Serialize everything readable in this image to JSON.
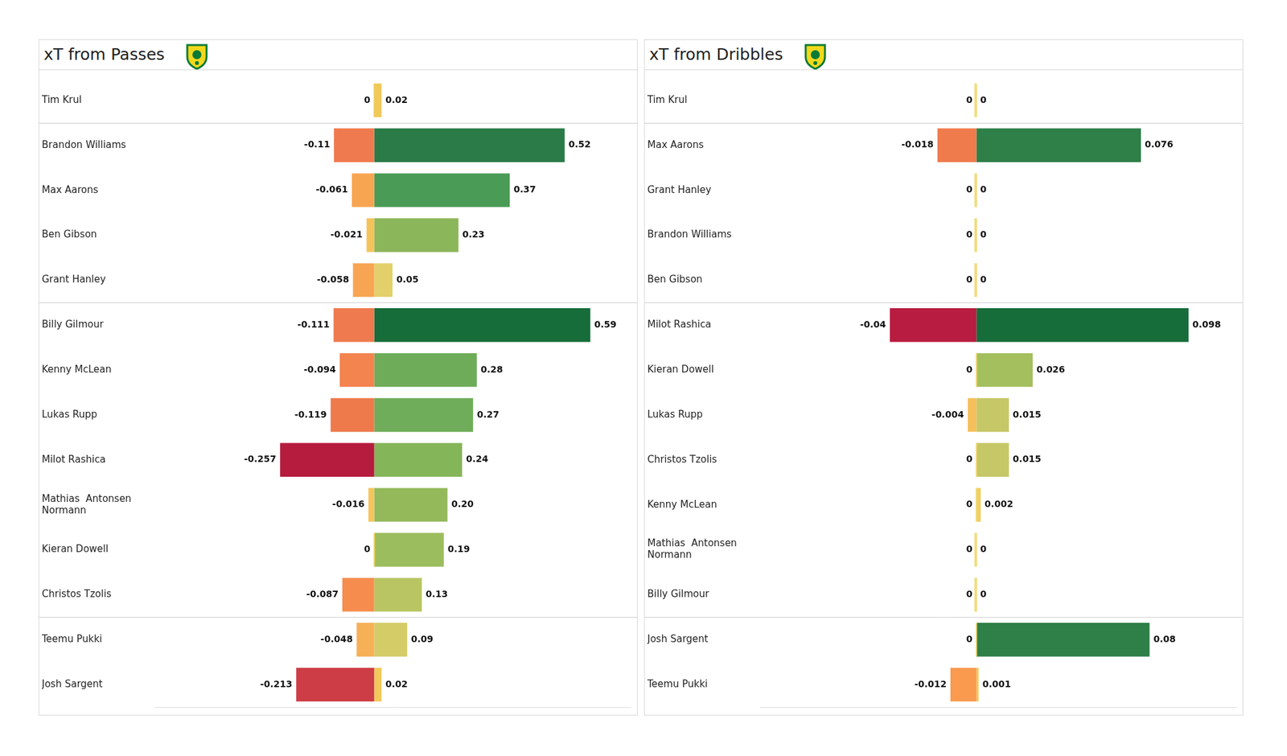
{
  "chart_data": [
    {
      "type": "bar",
      "title": "xT from Passes",
      "orientation": "horizontal",
      "stacked": true,
      "data_labels": true,
      "tick_labels": "y",
      "grid": false,
      "categories": [
        "Tim Krul",
        "Brandon Williams",
        "Max Aarons",
        "Ben Gibson",
        "Grant Hanley",
        "Billy Gilmour",
        "Kenny McLean",
        "Lukas Rupp",
        "Milot Rashica",
        [
          "Mathias  Antonsen",
          "Normann"
        ],
        "Kieran Dowell",
        "Christos Tzolis",
        "Teemu Pukki",
        "Josh Sargent"
      ],
      "xlim": [
        -0.6,
        0.7
      ],
      "series": [
        {
          "values": [
            0,
            -0.11,
            -0.061,
            -0.021,
            -0.058,
            -0.111,
            -0.094,
            -0.119,
            -0.257,
            -0.016,
            0,
            -0.087,
            -0.048,
            -0.213
          ],
          "value_labels": [
            "0",
            "-0.11",
            "-0.061",
            "-0.021",
            "-0.058",
            "-0.111",
            "-0.094",
            "-0.119",
            "-0.257",
            "-0.016",
            "0",
            "-0.087",
            "-0.048",
            "-0.213"
          ],
          "colors": [
            "#f0d060",
            "#f07a4f",
            "#f8a552",
            "#f4c35c",
            "#f7a552",
            "#ef7a4f",
            "#f3834f",
            "#ee7a4c",
            "#b51c3e",
            "#f5c55e",
            "#f5d565",
            "#f68d4e",
            "#f6b056",
            "#cd3d45"
          ]
        },
        {
          "values": [
            0.02,
            0.52,
            0.37,
            0.23,
            0.05,
            0.59,
            0.28,
            0.27,
            0.24,
            0.2,
            0.19,
            0.13,
            0.09,
            0.02
          ],
          "value_labels": [
            "0.02",
            "0.52",
            "0.37",
            "0.23",
            "0.05",
            "0.59",
            "0.28",
            "0.27",
            "0.24",
            "0.20",
            "0.19",
            "0.13",
            "0.09",
            "0.02"
          ],
          "colors": [
            "#f1c85a",
            "#2a7b48",
            "#4a9b55",
            "#8cb65a",
            "#e3d06a",
            "#166d3a",
            "#6fac5a",
            "#70ad5a",
            "#85b559",
            "#93b95b",
            "#9cbd5d",
            "#b8c562",
            "#d3cc67",
            "#f1c85a"
          ]
        }
      ]
    },
    {
      "type": "bar",
      "title": "xT from Dribbles",
      "orientation": "horizontal",
      "stacked": true,
      "data_labels": true,
      "tick_labels": "y",
      "grid": false,
      "categories": [
        "Tim Krul",
        "Max Aarons",
        "Grant Hanley",
        "Brandon Williams",
        "Ben Gibson",
        "Milot Rashica",
        "Kieran Dowell",
        "Lukas Rupp",
        "Christos Tzolis",
        "Kenny McLean",
        [
          "Mathias  Antonsen",
          "Normann"
        ],
        "Billy Gilmour",
        "Josh Sargent",
        "Teemu Pukki"
      ],
      "xlim": [
        -0.1,
        0.12
      ],
      "series": [
        {
          "values": [
            0,
            -0.018,
            0,
            0,
            0,
            -0.04,
            0,
            -0.004,
            0,
            0,
            0,
            0,
            0,
            -0.012
          ],
          "value_labels": [
            "0",
            "-0.018",
            "0",
            "0",
            "0",
            "-0.04",
            "0",
            "-0.004",
            "0",
            "0",
            "0",
            "0",
            "0",
            "-0.012"
          ],
          "colors": [
            "#f0d870",
            "#ef7b4d",
            "#f0d870",
            "#f0d870",
            "#f0d870",
            "#b81c40",
            "#f0d870",
            "#f5c05c",
            "#f0d870",
            "#f0d870",
            "#f0d870",
            "#f0d870",
            "#f0d870",
            "#f99a4f"
          ]
        },
        {
          "values": [
            0,
            0.076,
            0,
            0,
            0,
            0.098,
            0.026,
            0.015,
            0.015,
            0.002,
            0,
            0,
            0.08,
            0.001
          ],
          "value_labels": [
            "0",
            "0.076",
            "0",
            "0",
            "0",
            "0.098",
            "0.026",
            "0.015",
            "0.015",
            "0.002",
            "0",
            "0",
            "0.08",
            "0.001"
          ],
          "colors": [
            "#f0d870",
            "#2e7f48",
            "#f0d870",
            "#f0d870",
            "#f0d870",
            "#166d3a",
            "#a3bf5e",
            "#c6c767",
            "#c6c767",
            "#f0d062",
            "#f0d870",
            "#f0d870",
            "#2e7f48",
            "#f1c85a"
          ]
        }
      ]
    }
  ]
}
